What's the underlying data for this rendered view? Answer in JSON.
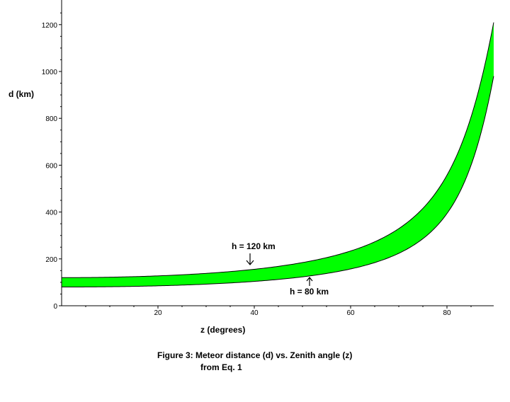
{
  "chart_data": {
    "type": "area",
    "xlabel": "z (degrees)",
    "ylabel": "d (km)",
    "xlim": [
      0,
      90
    ],
    "ylim": [
      0,
      1250
    ],
    "x_ticks": [
      {
        "value": 20,
        "label": "20"
      },
      {
        "value": 40,
        "label": "40"
      },
      {
        "value": 60,
        "label": "60"
      },
      {
        "value": 80,
        "label": "80"
      }
    ],
    "y_ticks": [
      {
        "value": 0,
        "label": "0"
      },
      {
        "value": 200,
        "label": "200"
      },
      {
        "value": 400,
        "label": "400"
      },
      {
        "value": 600,
        "label": "600"
      },
      {
        "value": 800,
        "label": "800"
      },
      {
        "value": 1000,
        "label": "1000"
      },
      {
        "value": 1200,
        "label": "1200"
      }
    ],
    "series": [
      {
        "name": "h = 120 km",
        "height_km": 120
      },
      {
        "name": "h = 80 km",
        "height_km": 80
      }
    ],
    "band_fill": "#00ff00",
    "caption": [
      "Figure 3: Meteor distance (d) vs. Zenith angle (z)",
      "from Eq. 1"
    ]
  }
}
